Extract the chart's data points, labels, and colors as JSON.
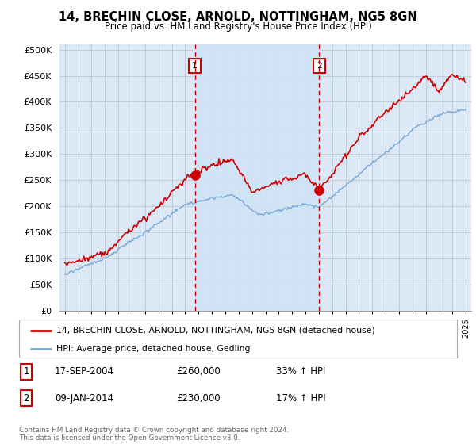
{
  "title": "14, BRECHIN CLOSE, ARNOLD, NOTTINGHAM, NG5 8GN",
  "subtitle": "Price paid vs. HM Land Registry's House Price Index (HPI)",
  "ytick_values": [
    0,
    50000,
    100000,
    150000,
    200000,
    250000,
    300000,
    350000,
    400000,
    450000,
    500000
  ],
  "ylim": [
    0,
    510000
  ],
  "legend_line1": "14, BRECHIN CLOSE, ARNOLD, NOTTINGHAM, NG5 8GN (detached house)",
  "legend_line2": "HPI: Average price, detached house, Gedling",
  "marker1_date": "17-SEP-2004",
  "marker1_price": "£260,000",
  "marker1_hpi": "33% ↑ HPI",
  "marker2_date": "09-JAN-2014",
  "marker2_price": "£230,000",
  "marker2_hpi": "17% ↑ HPI",
  "footer": "Contains HM Land Registry data © Crown copyright and database right 2024.\nThis data is licensed under the Open Government Licence v3.0.",
  "red_color": "#cc0000",
  "blue_color": "#7aa8d2",
  "vline_color": "#cc0000",
  "shade_color": "#d0e4f7",
  "background_color": "#ffffff",
  "plot_bg_color": "#dce8f5",
  "grid_color": "#c0cdd8",
  "sale1_x": 2004.72,
  "sale1_y": 260000,
  "sale2_x": 2014.03,
  "sale2_y": 230000,
  "xlim_left": 1994.6,
  "xlim_right": 2025.4
}
